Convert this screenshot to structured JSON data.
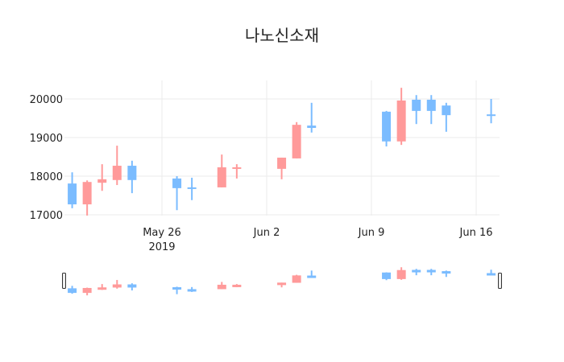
{
  "chart_data": {
    "type": "candlestick",
    "title": "나노신소재",
    "xlabel": "",
    "ylabel": "",
    "ylim": [
      16900,
      20500
    ],
    "yticks": [
      17000,
      18000,
      19000,
      20000
    ],
    "xticks": [
      {
        "label": "May 26",
        "sublabel": "2019",
        "date": "2019-05-26"
      },
      {
        "label": "Jun 2",
        "sublabel": "",
        "date": "2019-06-02"
      },
      {
        "label": "Jun 9",
        "sublabel": "",
        "date": "2019-06-09"
      },
      {
        "label": "Jun 16",
        "sublabel": "",
        "date": "2019-06-16"
      }
    ],
    "grid": true,
    "rangeslider": true,
    "increasing_color": "#ff9a9a",
    "decreasing_color": "#7bbcff",
    "candles": [
      {
        "date": "2019-05-20",
        "open": 17810,
        "high": 18100,
        "low": 17170,
        "close": 17270
      },
      {
        "date": "2019-05-21",
        "open": 17270,
        "high": 17890,
        "low": 16980,
        "close": 17850
      },
      {
        "date": "2019-05-22",
        "open": 17830,
        "high": 18310,
        "low": 17620,
        "close": 17920
      },
      {
        "date": "2019-05-23",
        "open": 17900,
        "high": 18790,
        "low": 17770,
        "close": 18270
      },
      {
        "date": "2019-05-24",
        "open": 18270,
        "high": 18400,
        "low": 17560,
        "close": 17900
      },
      {
        "date": "2019-05-27",
        "open": 17940,
        "high": 18000,
        "low": 17120,
        "close": 17690
      },
      {
        "date": "2019-05-28",
        "open": 17710,
        "high": 17960,
        "low": 17380,
        "close": 17670
      },
      {
        "date": "2019-05-30",
        "open": 17710,
        "high": 18560,
        "low": 17710,
        "close": 18230
      },
      {
        "date": "2019-05-31",
        "open": 18190,
        "high": 18310,
        "low": 17940,
        "close": 18230
      },
      {
        "date": "2019-06-03",
        "open": 18190,
        "high": 18480,
        "low": 17920,
        "close": 18480
      },
      {
        "date": "2019-06-04",
        "open": 18460,
        "high": 19400,
        "low": 18460,
        "close": 19330
      },
      {
        "date": "2019-06-05",
        "open": 19310,
        "high": 19900,
        "low": 19130,
        "close": 19250
      },
      {
        "date": "2019-06-10",
        "open": 19670,
        "high": 19690,
        "low": 18770,
        "close": 18900
      },
      {
        "date": "2019-06-11",
        "open": 18900,
        "high": 20290,
        "low": 18810,
        "close": 19960
      },
      {
        "date": "2019-06-12",
        "open": 19980,
        "high": 20100,
        "low": 19350,
        "close": 19690
      },
      {
        "date": "2019-06-13",
        "open": 19980,
        "high": 20100,
        "low": 19350,
        "close": 19690
      },
      {
        "date": "2019-06-14",
        "open": 19830,
        "high": 19900,
        "low": 19150,
        "close": 19580
      },
      {
        "date": "2019-06-17",
        "open": 19600,
        "high": 20000,
        "low": 19370,
        "close": 19580
      }
    ]
  }
}
